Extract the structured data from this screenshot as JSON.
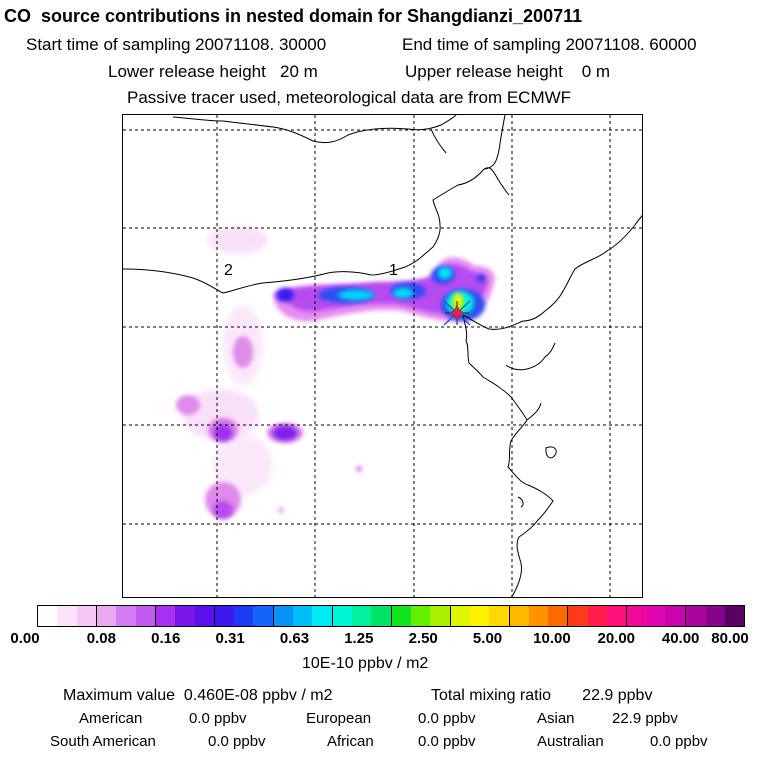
{
  "header": {
    "title": "CO  source contributions in nested domain for Shangdianzi_200711",
    "start_label": "Start time of sampling 20071108. 30000",
    "end_label": "End time of sampling 20071108. 60000",
    "lower_label": "Lower release height   20 m",
    "upper_label": "Upper release height    0 m",
    "tracer_line": "Passive tracer used, meteorological data are from ECMWF"
  },
  "map": {
    "region_labels": [
      "2",
      "1"
    ],
    "receptor_marker": "star-marker"
  },
  "colorbar": {
    "ticks": [
      "0.00",
      "0.08",
      "0.16",
      "0.31",
      "0.63",
      "1.25",
      "2.50",
      "5.00",
      "10.00",
      "20.00",
      "40.00",
      "80.00"
    ],
    "colors": [
      "#ffffff",
      "#fbe4fb",
      "#f5c8f5",
      "#eca8ee",
      "#d37bf0",
      "#c05af0",
      "#a631ef",
      "#7a17e6",
      "#5a10ee",
      "#3c18f0",
      "#1f3af5",
      "#1266f7",
      "#0a93f7",
      "#00bff8",
      "#00eaf5",
      "#00f5d6",
      "#00f0a0",
      "#00e466",
      "#10e520",
      "#64ef00",
      "#a8f000",
      "#e0f500",
      "#fff200",
      "#ffd800",
      "#ffb800",
      "#ff9200",
      "#ff6a00",
      "#ff3a18",
      "#ff1e4a",
      "#ff0f78",
      "#f0089a",
      "#de06b0",
      "#c805ac",
      "#a8059c",
      "#86048a",
      "#5a0260"
    ],
    "unit": "10E-10 ppbv / m2"
  },
  "footer": {
    "max_label": "Maximum value  0.460E-08 ppbv / m2",
    "total_label": "Total mixing ratio       22.9 ppbv",
    "regions": [
      {
        "name": "American",
        "value": "0.0 ppbv"
      },
      {
        "name": "European",
        "value": "0.0 ppbv"
      },
      {
        "name": "Asian",
        "value": "22.9 ppbv"
      },
      {
        "name": "South American",
        "value": "0.0 ppbv"
      },
      {
        "name": "African",
        "value": "0.0 ppbv"
      },
      {
        "name": "Australian",
        "value": "0.0 ppbv"
      }
    ]
  }
}
